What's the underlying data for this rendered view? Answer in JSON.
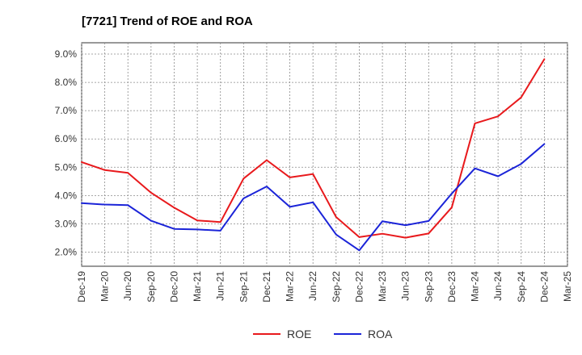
{
  "chart_data": {
    "type": "line",
    "title": "[7721]  Trend of ROE and ROA",
    "xlabel": "",
    "ylabel": "",
    "x": [
      "Dec-19",
      "Mar-20",
      "Jun-20",
      "Sep-20",
      "Dec-20",
      "Mar-21",
      "Jun-21",
      "Sep-21",
      "Dec-21",
      "Mar-22",
      "Jun-22",
      "Sep-22",
      "Dec-22",
      "Mar-23",
      "Jun-23",
      "Sep-23",
      "Dec-23",
      "Mar-24",
      "Jun-24",
      "Sep-24",
      "Dec-24",
      "Mar-25"
    ],
    "ylim": [
      1.5,
      9.4
    ],
    "yticks": [
      "2.0%",
      "3.0%",
      "4.0%",
      "5.0%",
      "6.0%",
      "7.0%",
      "8.0%",
      "9.0%"
    ],
    "ytick_values": [
      2,
      3,
      4,
      5,
      6,
      7,
      8,
      9
    ],
    "grid": true,
    "legend_position": "bottom-center",
    "series": [
      {
        "name": "ROE",
        "color": "#e8191c",
        "values": [
          5.18,
          4.9,
          4.8,
          4.1,
          3.57,
          3.12,
          3.06,
          4.6,
          5.25,
          4.64,
          4.76,
          3.24,
          2.53,
          2.65,
          2.51,
          2.66,
          3.58,
          6.55,
          6.8,
          7.47,
          8.82,
          null
        ]
      },
      {
        "name": "ROA",
        "color": "#1b24d8",
        "values": [
          3.73,
          3.68,
          3.66,
          3.11,
          2.82,
          2.8,
          2.76,
          3.9,
          4.32,
          3.6,
          3.76,
          2.62,
          2.06,
          3.09,
          2.95,
          3.1,
          4.07,
          4.96,
          4.68,
          5.12,
          5.82,
          null
        ]
      }
    ]
  }
}
